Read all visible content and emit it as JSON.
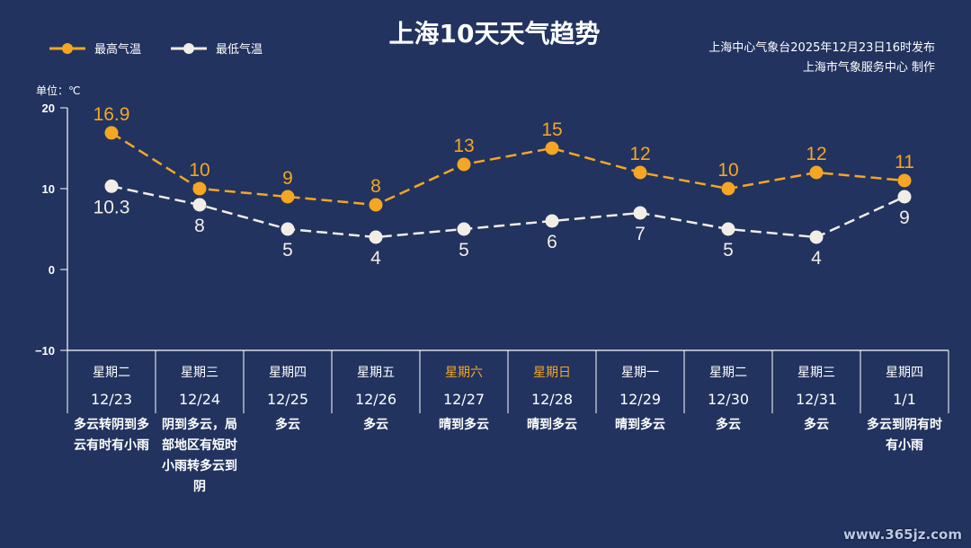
{
  "chart_data": {
    "type": "line",
    "title": "上海10天天气趋势",
    "source_line1": "上海中心气象台2025年12月23日16时发布",
    "source_line2": "上海市气象服务中心 制作",
    "unit_label": "单位：℃",
    "ylim": [
      -10,
      20
    ],
    "yticks": [
      20,
      10,
      0,
      -10
    ],
    "legend_position": "top-left",
    "weekdays": [
      "星期二",
      "星期三",
      "星期四",
      "星期五",
      "星期六",
      "星期日",
      "星期一",
      "星期二",
      "星期三",
      "星期四"
    ],
    "weekend_flags": [
      false,
      false,
      false,
      false,
      true,
      true,
      false,
      false,
      false,
      false
    ],
    "dates": [
      "12/23",
      "12/24",
      "12/25",
      "12/26",
      "12/27",
      "12/28",
      "12/29",
      "12/30",
      "12/31",
      "1/1"
    ],
    "weather": [
      "多云转阴到多云有时有小雨",
      "阴到多云，局部地区有短时小雨转多云到阴",
      "多云",
      "多云",
      "晴到多云",
      "晴到多云",
      "晴到多云",
      "多云",
      "多云",
      "多云到阴有时有小雨"
    ],
    "series": [
      {
        "name": "最高气温",
        "color": "#f5a623",
        "values": [
          16.9,
          10,
          9,
          8,
          13,
          15,
          12,
          10,
          12,
          11
        ]
      },
      {
        "name": "最低气温",
        "color": "#f2ede6",
        "values": [
          10.3,
          8,
          5,
          4,
          5,
          6,
          7,
          5,
          4,
          9
        ]
      }
    ],
    "weekend_color": "#f5a623"
  },
  "watermark": "www.365jz.com"
}
